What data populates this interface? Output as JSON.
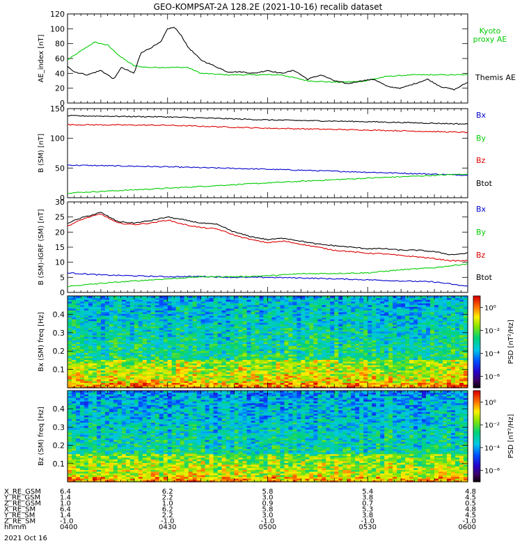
{
  "title": "GEO-KOMPSAT-2A 128.2E (2021-10-16) recalib dataset",
  "chart_data": [
    {
      "type": "line",
      "ylabel": "AE_index [nT]",
      "ylim": [
        0,
        120
      ],
      "yticks": [
        0,
        20,
        40,
        60,
        80,
        100,
        120
      ],
      "xlim": [
        "04:00",
        "06:00"
      ],
      "legend": "right",
      "series": [
        {
          "name": "Kyoto proxy AE",
          "color": "#00cc00",
          "x": [
            "04:00",
            "04:04",
            "04:08",
            "04:12",
            "04:16",
            "04:20",
            "04:24",
            "04:28",
            "04:32",
            "04:36",
            "04:40",
            "04:48",
            "04:56",
            "05:04",
            "05:12",
            "05:20",
            "05:28",
            "05:36",
            "05:44",
            "05:52",
            "06:00"
          ],
          "values": [
            58,
            70,
            82,
            78,
            62,
            50,
            48,
            48,
            48,
            48,
            40,
            38,
            38,
            38,
            30,
            28,
            29,
            36,
            38,
            38,
            38
          ]
        },
        {
          "name": "Themis AE",
          "color": "#000000",
          "x": [
            "04:00",
            "04:02",
            "04:06",
            "04:10",
            "04:14",
            "04:16",
            "04:20",
            "04:22",
            "04:24",
            "04:28",
            "04:30",
            "04:32",
            "04:34",
            "04:36",
            "04:40",
            "04:44",
            "04:48",
            "04:52",
            "04:56",
            "05:00",
            "05:04",
            "05:08",
            "05:12",
            "05:16",
            "05:20",
            "05:24",
            "05:28",
            "05:32",
            "05:36",
            "05:40",
            "05:44",
            "05:48",
            "05:52",
            "05:56",
            "06:00"
          ],
          "values": [
            50,
            42,
            38,
            44,
            32,
            48,
            40,
            68,
            72,
            82,
            100,
            102,
            92,
            76,
            58,
            50,
            42,
            42,
            40,
            44,
            40,
            44,
            32,
            38,
            30,
            26,
            30,
            32,
            22,
            20,
            26,
            32,
            22,
            18,
            28
          ]
        }
      ]
    },
    {
      "type": "line",
      "ylabel": "B (SM) [nT]",
      "ylim": [
        0,
        150
      ],
      "yticks": [
        0,
        50,
        100,
        150
      ],
      "xlim": [
        "04:00",
        "06:00"
      ],
      "legend": "right",
      "series": [
        {
          "name": "Bx",
          "color": "#0000cc",
          "x": [
            "04:00",
            "04:30",
            "05:00",
            "05:30",
            "06:00"
          ],
          "values": [
            55,
            52,
            48,
            43,
            38
          ]
        },
        {
          "name": "By",
          "color": "#00cc00",
          "x": [
            "04:00",
            "04:30",
            "05:00",
            "05:30",
            "06:00"
          ],
          "values": [
            8,
            16,
            25,
            33,
            40
          ]
        },
        {
          "name": "Bz",
          "color": "#dd0000",
          "x": [
            "04:00",
            "04:30",
            "05:00",
            "05:30",
            "06:00"
          ],
          "values": [
            123,
            122,
            117,
            114,
            110
          ]
        },
        {
          "name": "Btot",
          "color": "#000000",
          "x": [
            "04:00",
            "04:30",
            "05:00",
            "05:30",
            "06:00"
          ],
          "values": [
            138,
            136,
            131,
            128,
            124
          ]
        }
      ]
    },
    {
      "type": "line",
      "ylabel": "B (SM)-IGRF (SM) [nT]",
      "ylim": [
        0,
        30
      ],
      "yticks": [
        0,
        5,
        10,
        15,
        20,
        25,
        30
      ],
      "xlim": [
        "04:00",
        "06:00"
      ],
      "legend": "right",
      "series": [
        {
          "name": "Bx",
          "color": "#0000cc",
          "x": [
            "04:00",
            "04:10",
            "04:20",
            "04:30",
            "04:40",
            "04:50",
            "05:00",
            "05:10",
            "05:20",
            "05:30",
            "05:40",
            "05:50",
            "06:00"
          ],
          "values": [
            6.5,
            5.8,
            5.5,
            5.2,
            5.3,
            5.0,
            5.0,
            4.8,
            4.5,
            4.2,
            3.8,
            3.5,
            2.0
          ]
        },
        {
          "name": "By",
          "color": "#00cc00",
          "x": [
            "04:00",
            "04:10",
            "04:20",
            "04:30",
            "04:40",
            "04:50",
            "05:00",
            "05:10",
            "05:20",
            "05:30",
            "05:40",
            "05:50",
            "06:00"
          ],
          "values": [
            2.0,
            3.0,
            3.8,
            4.5,
            5.2,
            5.2,
            5.5,
            6.2,
            6.3,
            6.5,
            7.5,
            8.2,
            9.5
          ]
        },
        {
          "name": "Bz",
          "color": "#dd0000",
          "x": [
            "04:00",
            "04:05",
            "04:10",
            "04:15",
            "04:20",
            "04:25",
            "04:30",
            "04:35",
            "04:40",
            "04:45",
            "04:50",
            "04:55",
            "05:00",
            "05:05",
            "05:10",
            "05:15",
            "05:20",
            "05:25",
            "05:30",
            "05:35",
            "05:40",
            "05:45",
            "05:50",
            "05:55",
            "06:00"
          ],
          "values": [
            22,
            24.5,
            26,
            23,
            22.5,
            23,
            24,
            22.5,
            21.5,
            21,
            19,
            17.5,
            16.5,
            17,
            16,
            15,
            14,
            13.5,
            13,
            12.8,
            12.2,
            11.8,
            11.2,
            10.5,
            10.5
          ]
        },
        {
          "name": "Btot",
          "color": "#000000",
          "x": [
            "04:00",
            "04:05",
            "04:10",
            "04:15",
            "04:20",
            "04:25",
            "04:30",
            "04:35",
            "04:40",
            "04:45",
            "04:50",
            "04:55",
            "05:00",
            "05:05",
            "05:10",
            "05:15",
            "05:20",
            "05:25",
            "05:30",
            "05:35",
            "05:40",
            "05:45",
            "05:50",
            "05:55",
            "06:00"
          ],
          "values": [
            23,
            25,
            26.5,
            23.5,
            23,
            23.8,
            25,
            24,
            23,
            22.5,
            20,
            18.5,
            17.5,
            18,
            17,
            16,
            15.5,
            15,
            14.5,
            14.5,
            14,
            14,
            13.5,
            12.5,
            13
          ]
        }
      ]
    },
    {
      "type": "heatmap",
      "ylabel": "Bx (SM) freq [Hz]",
      "ylim": [
        0,
        0.5
      ],
      "yticks": [
        0.1,
        0.2,
        0.3,
        0.4
      ],
      "colorbar_label": "PSD [nT²/Hz]",
      "colorbar_ticks": [
        "10⁰",
        "10⁻²",
        "10⁻⁴",
        "10⁻⁶"
      ],
      "colorbar_exponents": [
        0,
        -2,
        -4,
        -6
      ],
      "clim_log10": [
        -7,
        1
      ]
    },
    {
      "type": "heatmap",
      "ylabel": "Bz (SM) freq [Hz]",
      "ylim": [
        0,
        0.5
      ],
      "yticks": [
        0.1,
        0.2,
        0.3,
        0.4
      ],
      "colorbar_label": "PSD [nT²/Hz]",
      "colorbar_ticks": [
        "10⁰",
        "10⁻²",
        "10⁻⁴",
        "10⁻⁶"
      ],
      "colorbar_exponents": [
        0,
        -2,
        -4,
        -6
      ],
      "clim_log10": [
        -7,
        1
      ]
    }
  ],
  "ephemeris": {
    "rows": [
      {
        "label": "X_RE_GSM",
        "values": [
          "6.4",
          "6.2",
          "5.8",
          "5.4",
          "4.8"
        ]
      },
      {
        "label": "Y_RE_GSM",
        "values": [
          "1.4",
          "2.2",
          "3.0",
          "3.8",
          "4.5"
        ]
      },
      {
        "label": "Z_RE_GSM",
        "values": [
          "1.0",
          "1.0",
          "0.9",
          "0.7",
          "0.5"
        ]
      },
      {
        "label": "X_RE_SM",
        "values": [
          "6.4",
          "6.2",
          "5.8",
          "5.3",
          "4.8"
        ]
      },
      {
        "label": "Y_RE_SM",
        "values": [
          "1.4",
          "2.2",
          "3.0",
          "3.8",
          "4.5"
        ]
      },
      {
        "label": "Z_RE_SM",
        "values": [
          "-1.0",
          "-1.0",
          "-1.0",
          "-1.0",
          "-1.0"
        ]
      },
      {
        "label": "hhmm",
        "values": [
          "0400",
          "0430",
          "0500",
          "0530",
          "0600"
        ]
      }
    ],
    "date": "2021 Oct 16"
  }
}
